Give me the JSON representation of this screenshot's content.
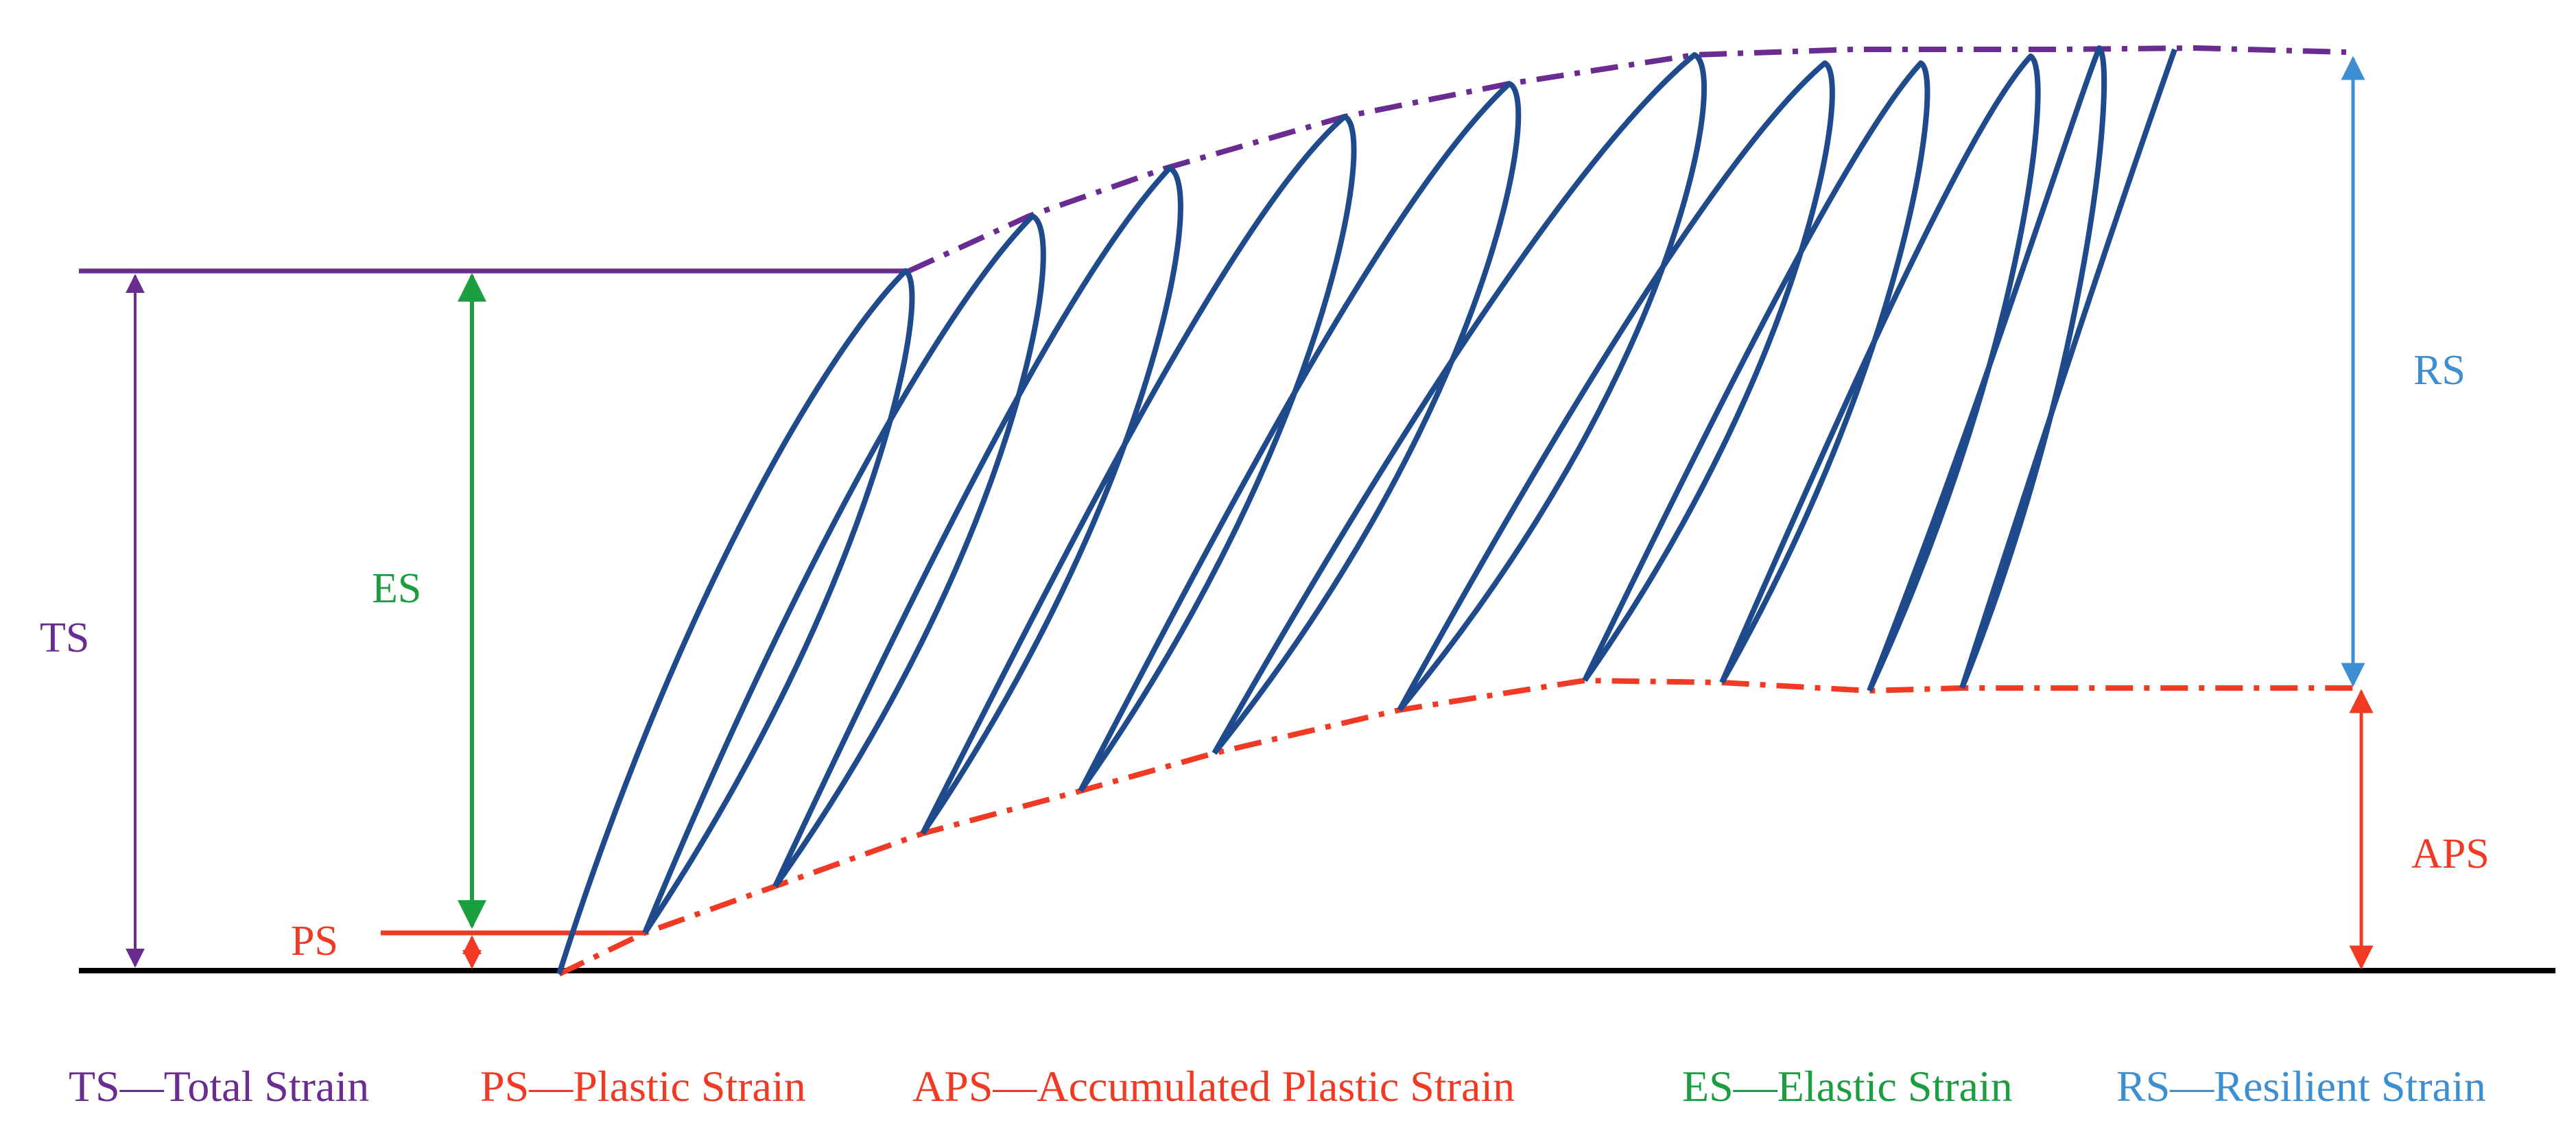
{
  "labels": {
    "ts": "TS",
    "es": "ES",
    "ps": "PS",
    "rs": "RS",
    "aps": "APS"
  },
  "legend": [
    {
      "key": "ts",
      "text": "TS—Total Strain"
    },
    {
      "key": "ps",
      "text": "PS—Plastic Strain"
    },
    {
      "key": "aps",
      "text": "APS—Accumulated Plastic Strain"
    },
    {
      "key": "es",
      "text": "ES—Elastic Strain"
    },
    {
      "key": "rs",
      "text": "RS—Resilient Strain"
    }
  ],
  "colors": {
    "ts": "#6a2c91",
    "es": "#1a9e3f",
    "ps": "#f03a24",
    "aps": "#f03a24",
    "rs": "#3d8fd1",
    "loops": "#1f4b8c",
    "baseline": "#000000"
  }
}
